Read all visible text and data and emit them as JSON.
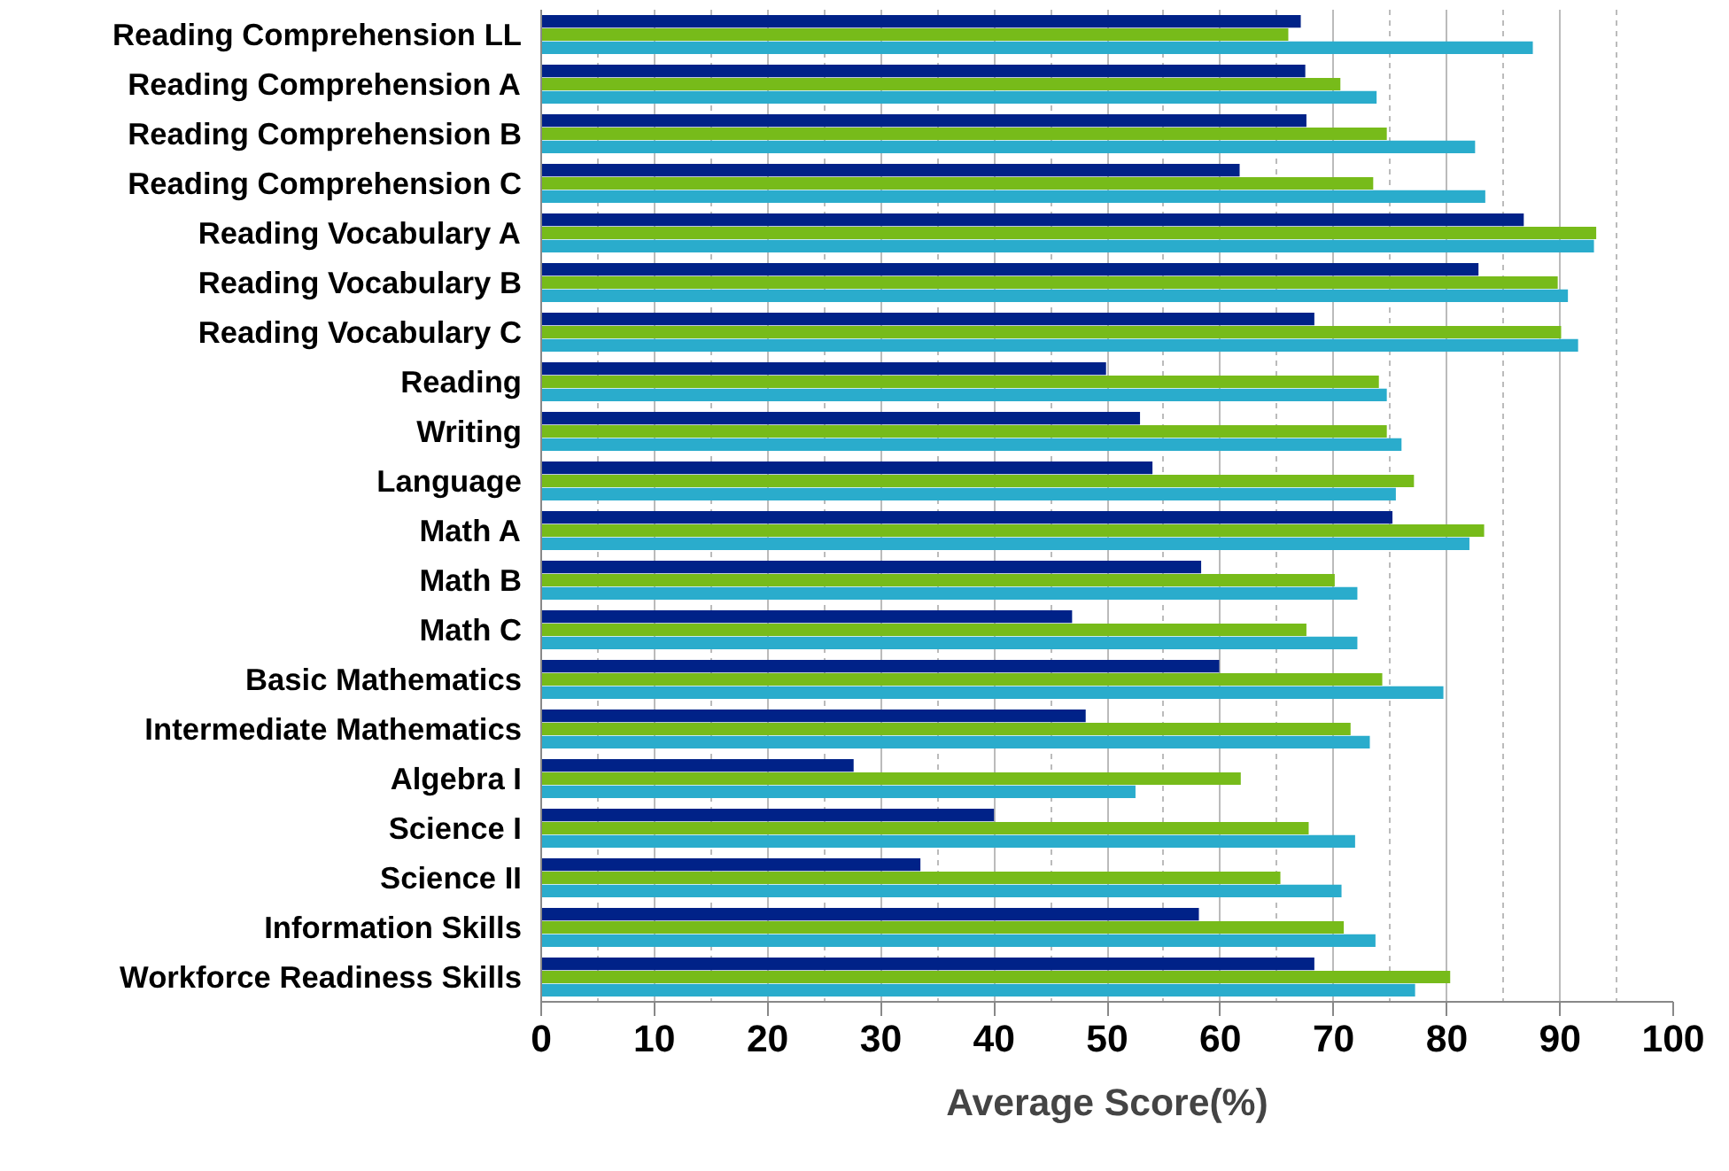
{
  "chart_data": {
    "type": "bar",
    "orientation": "horizontal",
    "xlabel": "Average Score(%)",
    "categories": [
      "Reading Comprehension LL",
      "Reading Comprehension A",
      "Reading Comprehension B",
      "Reading Comprehension C",
      "Reading Vocabulary A",
      "Reading Vocabulary B",
      "Reading Vocabulary C",
      "Reading",
      "Writing",
      "Language",
      "Math A",
      "Math B",
      "Math C",
      "Basic Mathematics",
      "Intermediate Mathematics",
      "Algebra I",
      "Science I",
      "Science II",
      "Information Skills",
      "Workforce Readiness Skills"
    ],
    "series": [
      {
        "color": "#002288",
        "values": [
          67.1,
          67.5,
          67.6,
          61.7,
          86.8,
          82.8,
          68.3,
          49.9,
          52.9,
          54.0,
          75.2,
          58.3,
          46.9,
          59.9,
          48.1,
          27.6,
          40.0,
          33.5,
          58.1,
          68.3
        ]
      },
      {
        "color": "#77bb1a",
        "values": [
          66.0,
          70.6,
          74.7,
          73.5,
          93.2,
          89.8,
          90.1,
          74.0,
          74.7,
          77.1,
          83.3,
          70.1,
          67.6,
          74.3,
          71.5,
          61.8,
          67.8,
          65.3,
          70.9,
          80.3
        ]
      },
      {
        "color": "#2aaccc",
        "values": [
          87.6,
          73.8,
          82.5,
          83.4,
          93.0,
          90.7,
          91.6,
          74.7,
          76.0,
          75.5,
          82.0,
          72.1,
          72.1,
          79.7,
          73.2,
          52.5,
          71.9,
          70.7,
          73.7,
          77.2
        ]
      }
    ],
    "xlim": [
      0,
      100
    ],
    "xticks": [
      0,
      10,
      20,
      30,
      40,
      50,
      60,
      70,
      80,
      90,
      100
    ],
    "grid": "x"
  }
}
